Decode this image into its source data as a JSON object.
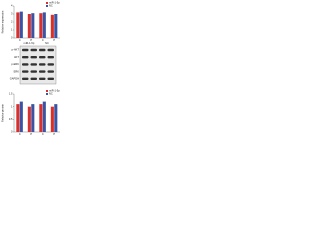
{
  "chart_data": [
    {
      "type": "bar",
      "ylabel": "Relative expression",
      "categories": [
        "C",
        "P",
        "C",
        "P"
      ],
      "series": [
        {
          "name": "miR-1-5p",
          "color": "#d9302c",
          "values": [
            3.2,
            3.0,
            3.1,
            2.9
          ]
        },
        {
          "name": "NC",
          "color": "#3a53a4",
          "values": [
            3.3,
            3.1,
            3.2,
            3.0
          ]
        }
      ],
      "ylim": [
        0,
        4
      ],
      "yticks": [
        0,
        1,
        2,
        3,
        4
      ],
      "legend": "top-right"
    },
    {
      "type": "bar",
      "ylabel": "Relative protein",
      "categories": [
        "C",
        "P",
        "C",
        "P"
      ],
      "series": [
        {
          "name": "miR-1-5p",
          "color": "#d9302c",
          "values": [
            1.1,
            1.0,
            1.1,
            1.0
          ]
        },
        {
          "name": "NC",
          "color": "#3a53a4",
          "values": [
            1.2,
            1.1,
            1.2,
            1.1
          ]
        }
      ],
      "ylim": [
        0,
        1.5
      ],
      "yticks": [
        0,
        0.5,
        1,
        1.5
      ],
      "legend": "top-right"
    }
  ],
  "blot": {
    "columns": [
      "miR-1-5p",
      "NC"
    ],
    "rows": [
      "p-AKT",
      "AKT",
      "p-ERK",
      "ERK",
      "GAPDH"
    ]
  }
}
